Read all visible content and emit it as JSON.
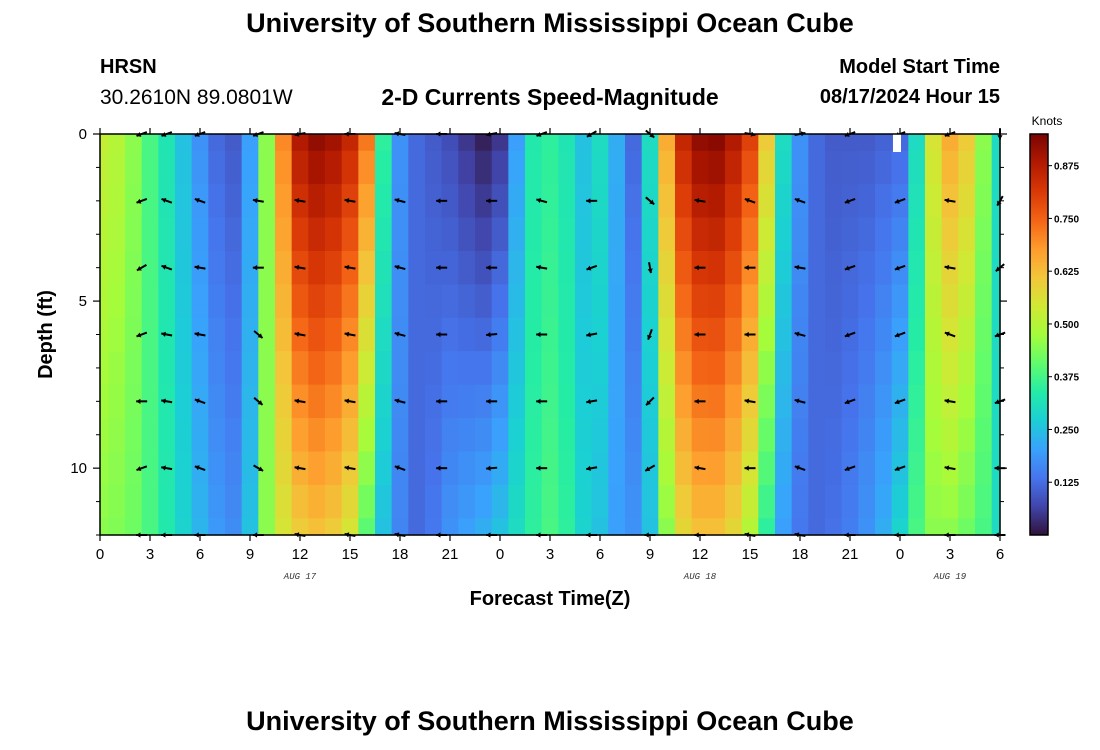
{
  "header": {
    "title": "University of Southern Mississippi Ocean Cube",
    "station": "HRSN",
    "coords": "30.2610N  89.0801W",
    "plot_title": "2-D Currents Speed-Magnitude",
    "start_label": "Model Start Time",
    "start_value": "08/17/2024 Hour 15"
  },
  "footer": {
    "title": "University of Southern Mississippi Ocean Cube"
  },
  "chart_data": {
    "type": "heatmap",
    "title": "2-D Currents Speed-Magnitude",
    "xlabel": "Forecast Time(Z)",
    "ylabel": "Depth (ft)",
    "xlim": [
      0,
      54
    ],
    "ylim": [
      0,
      12
    ],
    "x_tick_values": [
      0,
      3,
      6,
      9,
      12,
      15,
      18,
      21,
      24,
      27,
      30,
      33,
      36,
      39,
      42,
      45,
      48,
      51,
      54
    ],
    "x_tick_labels": [
      "0",
      "3",
      "6",
      "9",
      "12",
      "15",
      "18",
      "21",
      "0",
      "3",
      "6",
      "9",
      "12",
      "15",
      "18",
      "21",
      "0",
      "3",
      "6"
    ],
    "y_tick_values": [
      0,
      5,
      10
    ],
    "y_tick_labels": [
      "0",
      "5",
      "10"
    ],
    "date_labels": [
      {
        "x": 12,
        "text": "AUG 17"
      },
      {
        "x": 36,
        "text": "AUG 18"
      },
      {
        "x": 51,
        "text": "AUG 19"
      }
    ],
    "colorbar": {
      "label": "Knots",
      "min": 0,
      "max": 0.95,
      "ticks": [
        0.125,
        0.25,
        0.375,
        0.5,
        0.625,
        0.75,
        0.875
      ],
      "tick_labels": [
        "0.125",
        "0.250",
        "0.375",
        "0.500",
        "0.625",
        "0.750",
        "0.875"
      ],
      "colors": [
        "#30123b",
        "#4145ab",
        "#4675ed",
        "#39a2fc",
        "#1bcfd4",
        "#24eca6",
        "#61fc6c",
        "#a4fc3b",
        "#d1e834",
        "#f3c63a",
        "#fe9b2d",
        "#f36315",
        "#d93806",
        "#b11901",
        "#7a0402"
      ]
    },
    "depths": [
      0,
      1,
      2,
      3,
      4,
      5,
      6,
      7,
      8,
      9,
      10,
      11,
      12
    ],
    "speed_profile": {
      "hours": [
        0,
        1,
        2,
        3,
        4,
        5,
        6,
        7,
        8,
        9,
        10,
        11,
        12,
        13,
        14,
        15,
        16,
        17,
        18,
        19,
        20,
        21,
        22,
        23,
        24,
        25,
        26,
        27,
        28,
        29,
        30,
        31,
        32,
        33,
        34,
        35,
        36,
        37,
        38,
        39,
        40,
        41,
        42,
        43,
        44,
        45,
        46,
        47,
        48,
        49,
        50,
        51,
        52,
        53,
        54
      ],
      "surface_speed": [
        0.52,
        0.5,
        0.45,
        0.38,
        0.32,
        0.25,
        0.18,
        0.12,
        0.1,
        0.2,
        0.45,
        0.7,
        0.88,
        0.92,
        0.9,
        0.85,
        0.72,
        0.35,
        0.18,
        0.12,
        0.1,
        0.08,
        0.05,
        0.02,
        0.05,
        0.2,
        0.33,
        0.35,
        0.32,
        0.25,
        0.3,
        0.22,
        0.12,
        0.3,
        0.65,
        0.85,
        0.92,
        0.93,
        0.88,
        0.8,
        0.6,
        0.3,
        0.18,
        0.12,
        0.1,
        0.1,
        0.1,
        0.11,
        0.12,
        0.3,
        0.55,
        0.65,
        0.6,
        0.45,
        0.3
      ],
      "bottom_speed": [
        0.45,
        0.44,
        0.42,
        0.38,
        0.33,
        0.28,
        0.23,
        0.19,
        0.17,
        0.25,
        0.45,
        0.55,
        0.6,
        0.62,
        0.6,
        0.55,
        0.4,
        0.25,
        0.16,
        0.12,
        0.14,
        0.18,
        0.2,
        0.22,
        0.25,
        0.3,
        0.35,
        0.38,
        0.35,
        0.28,
        0.25,
        0.2,
        0.18,
        0.25,
        0.45,
        0.58,
        0.62,
        0.62,
        0.58,
        0.5,
        0.35,
        0.2,
        0.14,
        0.12,
        0.13,
        0.15,
        0.18,
        0.22,
        0.28,
        0.38,
        0.45,
        0.45,
        0.42,
        0.38,
        0.3
      ]
    },
    "vectors": {
      "times": [
        2.5,
        4,
        6,
        9.5,
        12,
        15,
        18,
        20.5,
        23.5,
        26.5,
        29.5,
        33,
        36,
        39,
        42,
        45,
        48,
        51,
        54
      ],
      "depths": [
        0,
        2,
        4,
        6,
        8,
        10,
        12
      ],
      "rows": [
        [
          200,
          200,
          200,
          200,
          190,
          180,
          170,
          180,
          190,
          200,
          210,
          320,
          null,
          350,
          10,
          200,
          200,
          200,
          270
        ],
        [
          200,
          160,
          160,
          170,
          170,
          170,
          165,
          180,
          180,
          165,
          180,
          320,
          170,
          160,
          160,
          200,
          200,
          170,
          240
        ],
        [
          210,
          160,
          170,
          180,
          170,
          170,
          165,
          180,
          180,
          170,
          200,
          280,
          180,
          180,
          170,
          200,
          200,
          170,
          220
        ],
        [
          200,
          170,
          170,
          320,
          170,
          170,
          165,
          180,
          185,
          180,
          190,
          250,
          180,
          180,
          165,
          200,
          200,
          160,
          200
        ],
        [
          180,
          170,
          160,
          320,
          170,
          170,
          165,
          180,
          180,
          180,
          190,
          225,
          180,
          170,
          165,
          200,
          200,
          170,
          200
        ],
        [
          200,
          170,
          160,
          330,
          170,
          170,
          160,
          180,
          185,
          180,
          190,
          210,
          170,
          180,
          160,
          200,
          200,
          170,
          180
        ],
        [
          180,
          180,
          180,
          180,
          170,
          170,
          170,
          180,
          180,
          180,
          180,
          180,
          180,
          170,
          170,
          180,
          180,
          180,
          180
        ]
      ]
    }
  }
}
